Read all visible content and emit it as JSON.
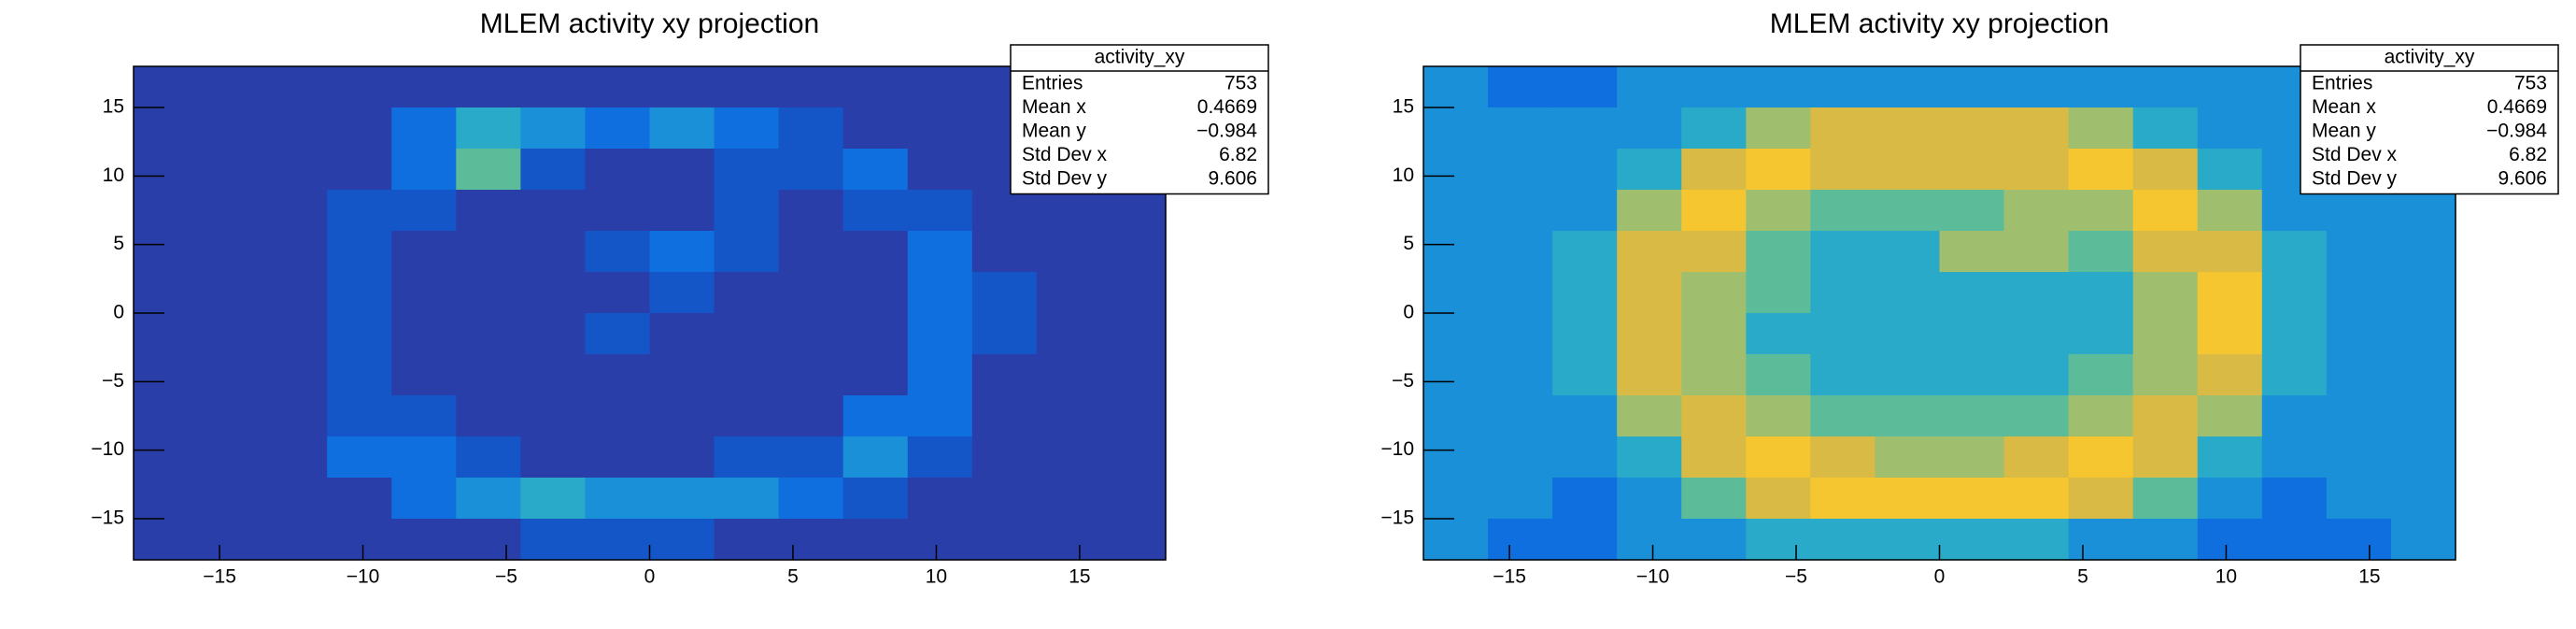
{
  "chart_data": [
    {
      "type": "heatmap",
      "title": "MLEM activity xy projection",
      "xlim": [
        -18,
        18
      ],
      "ylim": [
        -18,
        18
      ],
      "xticks": [
        {
          "value": -15,
          "label": "−15"
        },
        {
          "value": -10,
          "label": "−10"
        },
        {
          "value": -5,
          "label": "−5"
        },
        0,
        5,
        10,
        15
      ],
      "yticks": [
        {
          "value": -15,
          "label": "−15"
        },
        {
          "value": -10,
          "label": "−10"
        },
        {
          "value": -5,
          "label": "−5"
        },
        0,
        5,
        10,
        15
      ],
      "colors": [
        "#2a3eaa",
        "#1456c8",
        "#0f6fde",
        "#1a90d8",
        "#29aac8",
        "#5cbc9a",
        "#a0bf6e",
        "#d8ba45",
        "#f5c630",
        "#f9e024"
      ],
      "z": [
        [
          0,
          0,
          0,
          0,
          0,
          0,
          0,
          0,
          0,
          0,
          0,
          0,
          0,
          0,
          0,
          0
        ],
        [
          0,
          0,
          0,
          0,
          2,
          4,
          3,
          2,
          3,
          2,
          1,
          0,
          0,
          0,
          0,
          0
        ],
        [
          0,
          0,
          0,
          0,
          2,
          5,
          1,
          0,
          0,
          1,
          1,
          2,
          0,
          0,
          0,
          0
        ],
        [
          0,
          0,
          0,
          1,
          1,
          0,
          0,
          0,
          0,
          1,
          0,
          1,
          1,
          0,
          0,
          0
        ],
        [
          0,
          0,
          0,
          1,
          0,
          0,
          0,
          1,
          2,
          1,
          0,
          0,
          2,
          0,
          0,
          0
        ],
        [
          0,
          0,
          0,
          1,
          0,
          0,
          0,
          0,
          1,
          0,
          0,
          0,
          2,
          1,
          0,
          0
        ],
        [
          0,
          0,
          0,
          1,
          0,
          0,
          0,
          1,
          0,
          0,
          0,
          0,
          2,
          1,
          0,
          0
        ],
        [
          0,
          0,
          0,
          1,
          0,
          0,
          0,
          0,
          0,
          0,
          0,
          0,
          2,
          0,
          0,
          0
        ],
        [
          0,
          0,
          0,
          1,
          1,
          0,
          0,
          0,
          0,
          0,
          0,
          2,
          2,
          0,
          0,
          0
        ],
        [
          0,
          0,
          0,
          2,
          2,
          1,
          0,
          0,
          0,
          1,
          1,
          3,
          1,
          0,
          0,
          0
        ],
        [
          0,
          0,
          0,
          0,
          2,
          3,
          4,
          3,
          3,
          3,
          2,
          1,
          0,
          0,
          0,
          0
        ],
        [
          0,
          0,
          0,
          0,
          0,
          0,
          1,
          1,
          1,
          0,
          0,
          0,
          0,
          0,
          0,
          0
        ]
      ],
      "stats": {
        "title": "activity_xy",
        "rows": [
          {
            "name": "Entries",
            "value": "753"
          },
          {
            "name": "Mean x",
            "value": "0.4669"
          },
          {
            "name": "Mean y",
            "value": "−0.984"
          },
          {
            "name": "Std Dev x",
            "value": "6.82"
          },
          {
            "name": "Std Dev y",
            "value": "9.606"
          }
        ]
      }
    },
    {
      "type": "heatmap",
      "title": "MLEM activity xy projection",
      "xlim": [
        -18,
        18
      ],
      "ylim": [
        -18,
        18
      ],
      "xticks": [
        {
          "value": -15,
          "label": "−15"
        },
        {
          "value": -10,
          "label": "−10"
        },
        {
          "value": -5,
          "label": "−5"
        },
        0,
        5,
        10,
        15
      ],
      "yticks": [
        {
          "value": -15,
          "label": "−15"
        },
        {
          "value": -10,
          "label": "−10"
        },
        {
          "value": -5,
          "label": "−5"
        },
        0,
        5,
        10,
        15
      ],
      "colors": [
        "#2a3eaa",
        "#1456c8",
        "#0f6fde",
        "#1a90d8",
        "#29aac8",
        "#5cbc9a",
        "#a0bf6e",
        "#d8ba45",
        "#f5c630",
        "#f9e024"
      ],
      "z": [
        [
          3,
          2,
          2,
          3,
          3,
          3,
          3,
          3,
          3,
          3,
          3,
          3,
          3,
          3,
          2,
          3
        ],
        [
          3,
          3,
          3,
          3,
          4,
          6,
          7,
          7,
          7,
          7,
          6,
          4,
          3,
          3,
          3,
          3
        ],
        [
          3,
          3,
          3,
          4,
          7,
          8,
          7,
          7,
          7,
          7,
          8,
          7,
          4,
          3,
          3,
          3
        ],
        [
          3,
          3,
          3,
          6,
          8,
          6,
          5,
          5,
          5,
          6,
          6,
          8,
          6,
          3,
          3,
          3
        ],
        [
          3,
          3,
          4,
          7,
          7,
          5,
          4,
          4,
          6,
          6,
          5,
          7,
          7,
          4,
          3,
          3
        ],
        [
          3,
          3,
          4,
          7,
          6,
          5,
          4,
          4,
          4,
          4,
          4,
          6,
          8,
          4,
          3,
          3
        ],
        [
          3,
          3,
          4,
          7,
          6,
          4,
          4,
          4,
          4,
          4,
          4,
          6,
          8,
          4,
          3,
          3
        ],
        [
          3,
          3,
          4,
          7,
          6,
          5,
          4,
          4,
          4,
          4,
          5,
          6,
          7,
          4,
          3,
          3
        ],
        [
          3,
          3,
          3,
          6,
          7,
          6,
          5,
          5,
          5,
          5,
          6,
          7,
          6,
          3,
          3,
          3
        ],
        [
          3,
          3,
          3,
          4,
          7,
          8,
          7,
          6,
          6,
          7,
          8,
          7,
          4,
          3,
          3,
          3
        ],
        [
          3,
          3,
          2,
          3,
          5,
          7,
          8,
          8,
          8,
          8,
          7,
          5,
          3,
          2,
          3,
          3
        ],
        [
          3,
          2,
          2,
          3,
          3,
          4,
          4,
          4,
          4,
          4,
          3,
          3,
          2,
          2,
          2,
          3
        ]
      ],
      "stats": {
        "title": "activity_xy",
        "rows": [
          {
            "name": "Entries",
            "value": "753"
          },
          {
            "name": "Mean x",
            "value": "0.4669"
          },
          {
            "name": "Mean y",
            "value": "−0.984"
          },
          {
            "name": "Std Dev x",
            "value": "6.82"
          },
          {
            "name": "Std Dev y",
            "value": "9.606"
          }
        ]
      }
    }
  ]
}
